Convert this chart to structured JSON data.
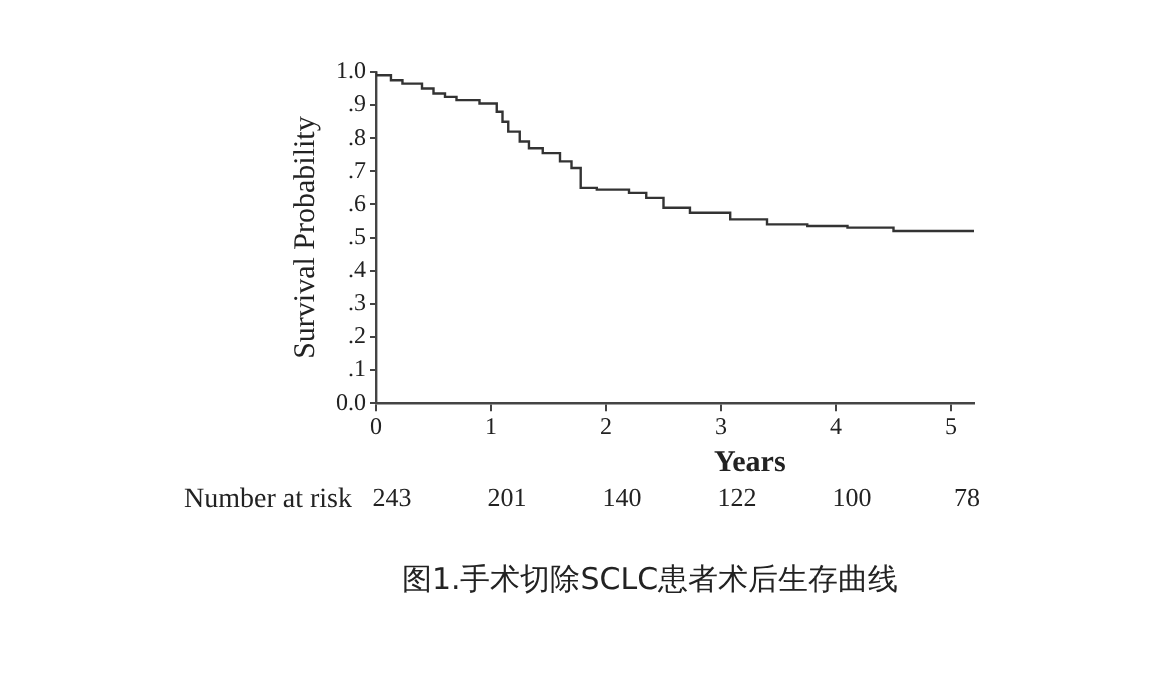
{
  "chart_data": {
    "type": "step",
    "title": "图1.手术切除SCLC患者术后生存曲线",
    "xlabel": "Years",
    "ylabel": "Survival Probability",
    "x": [
      0,
      0.13,
      0.23,
      0.4,
      0.5,
      0.6,
      0.7,
      0.9,
      1.05,
      1.1,
      1.15,
      1.25,
      1.33,
      1.45,
      1.6,
      1.7,
      1.78,
      1.92,
      2.2,
      2.35,
      2.5,
      2.73,
      3.08,
      3.4,
      3.75,
      4.1,
      4.5,
      5.08,
      5.2
    ],
    "series": [
      {
        "color": "#333333",
        "values": [
          1.0,
          0.99,
          0.975,
          0.965,
          0.95,
          0.935,
          0.925,
          0.915,
          0.905,
          0.88,
          0.85,
          0.82,
          0.79,
          0.77,
          0.755,
          0.73,
          0.71,
          0.65,
          0.645,
          0.635,
          0.62,
          0.59,
          0.575,
          0.555,
          0.54,
          0.535,
          0.53,
          0.52,
          0.52
        ]
      }
    ],
    "xlim": [
      0,
      5.2
    ],
    "xticks": [
      0,
      1,
      2,
      3,
      4,
      5
    ],
    "ylim": [
      0,
      1
    ],
    "yticks": [
      {
        "value": 0,
        "label": "0.0"
      },
      {
        "value": 0.1,
        "label": ".1"
      },
      {
        "value": 0.2,
        "label": ".2"
      },
      {
        "value": 0.3,
        "label": ".3"
      },
      {
        "value": 0.4,
        "label": ".4"
      },
      {
        "value": 0.5,
        "label": ".5"
      },
      {
        "value": 0.6,
        "label": ".6"
      },
      {
        "value": 0.7,
        "label": ".7"
      },
      {
        "value": 0.8,
        "label": ".8"
      },
      {
        "value": 0.9,
        "label": ".9"
      },
      {
        "value": 1,
        "label": "1.0"
      }
    ],
    "grid": false,
    "legend": false,
    "marker": "none",
    "line_style": "solid",
    "annotations": [
      "Number at risk",
      "243",
      "201",
      "140",
      "122",
      "100",
      "78"
    ]
  }
}
